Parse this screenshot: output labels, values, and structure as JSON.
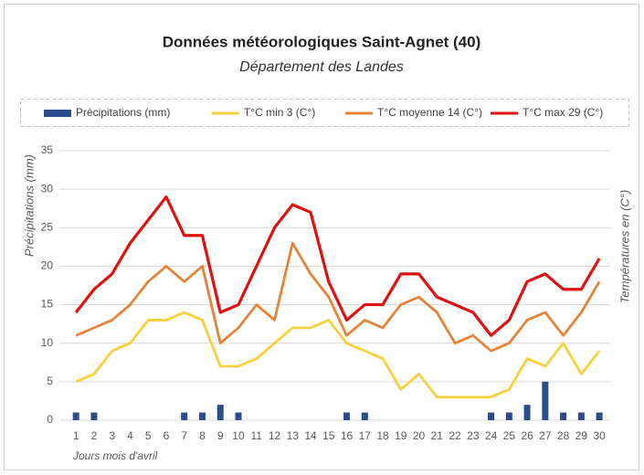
{
  "chart_data": {
    "type": "combo",
    "title": "Données météorologiques Saint-Agnet (40)",
    "subtitle": "Département des Landes",
    "x_label": "Jours mois d'avril",
    "y_label": "Précipitations (mm)",
    "y2_label": "Températures en (C°)",
    "categories": [
      "1",
      "2",
      "3",
      "4",
      "5",
      "6",
      "7",
      "8",
      "9",
      "10",
      "11",
      "12",
      "13",
      "14",
      "15",
      "16",
      "17",
      "18",
      "19",
      "20",
      "21",
      "22",
      "23",
      "24",
      "25",
      "26",
      "27",
      "28",
      "29",
      "30"
    ],
    "series": [
      {
        "name": "Précipitations (mm)",
        "type": "bar",
        "color": "#2b4d8c",
        "values": [
          1,
          1,
          0,
          0,
          0,
          0,
          1,
          1,
          2,
          1,
          0,
          0,
          0,
          0,
          0,
          1,
          1,
          0,
          0,
          0,
          0,
          0,
          0,
          1,
          1,
          2,
          5,
          1,
          1,
          1
        ]
      },
      {
        "name": "T°C min 3 (C°)",
        "type": "line",
        "color": "#f7d13d",
        "values": [
          5,
          6,
          9,
          10,
          13,
          13,
          14,
          13,
          7,
          7,
          8,
          10,
          12,
          12,
          13,
          10,
          9,
          8,
          4,
          6,
          3,
          3,
          3,
          3,
          4,
          8,
          7,
          10,
          6,
          9
        ]
      },
      {
        "name": "T°C moyenne 14 (C°)",
        "type": "line",
        "color": "#e3843a",
        "values": [
          11,
          12,
          13,
          15,
          18,
          20,
          18,
          20,
          10,
          12,
          15,
          13,
          23,
          19,
          16,
          11,
          13,
          12,
          15,
          16,
          14,
          10,
          11,
          9,
          10,
          13,
          14,
          11,
          14,
          18
        ]
      },
      {
        "name": "T°C max 29 (C°)",
        "type": "line",
        "color": "#e01010",
        "values": [
          14,
          17,
          19,
          23,
          26,
          29,
          24,
          24,
          14,
          15,
          20,
          25,
          28,
          27,
          18,
          13,
          15,
          15,
          19,
          19,
          16,
          15,
          14,
          11,
          13,
          18,
          19,
          17,
          17,
          21
        ]
      }
    ],
    "ylim": [
      0,
      35
    ],
    "yticks": [
      0,
      5,
      10,
      15,
      20,
      25,
      30,
      35
    ],
    "grid": true
  }
}
